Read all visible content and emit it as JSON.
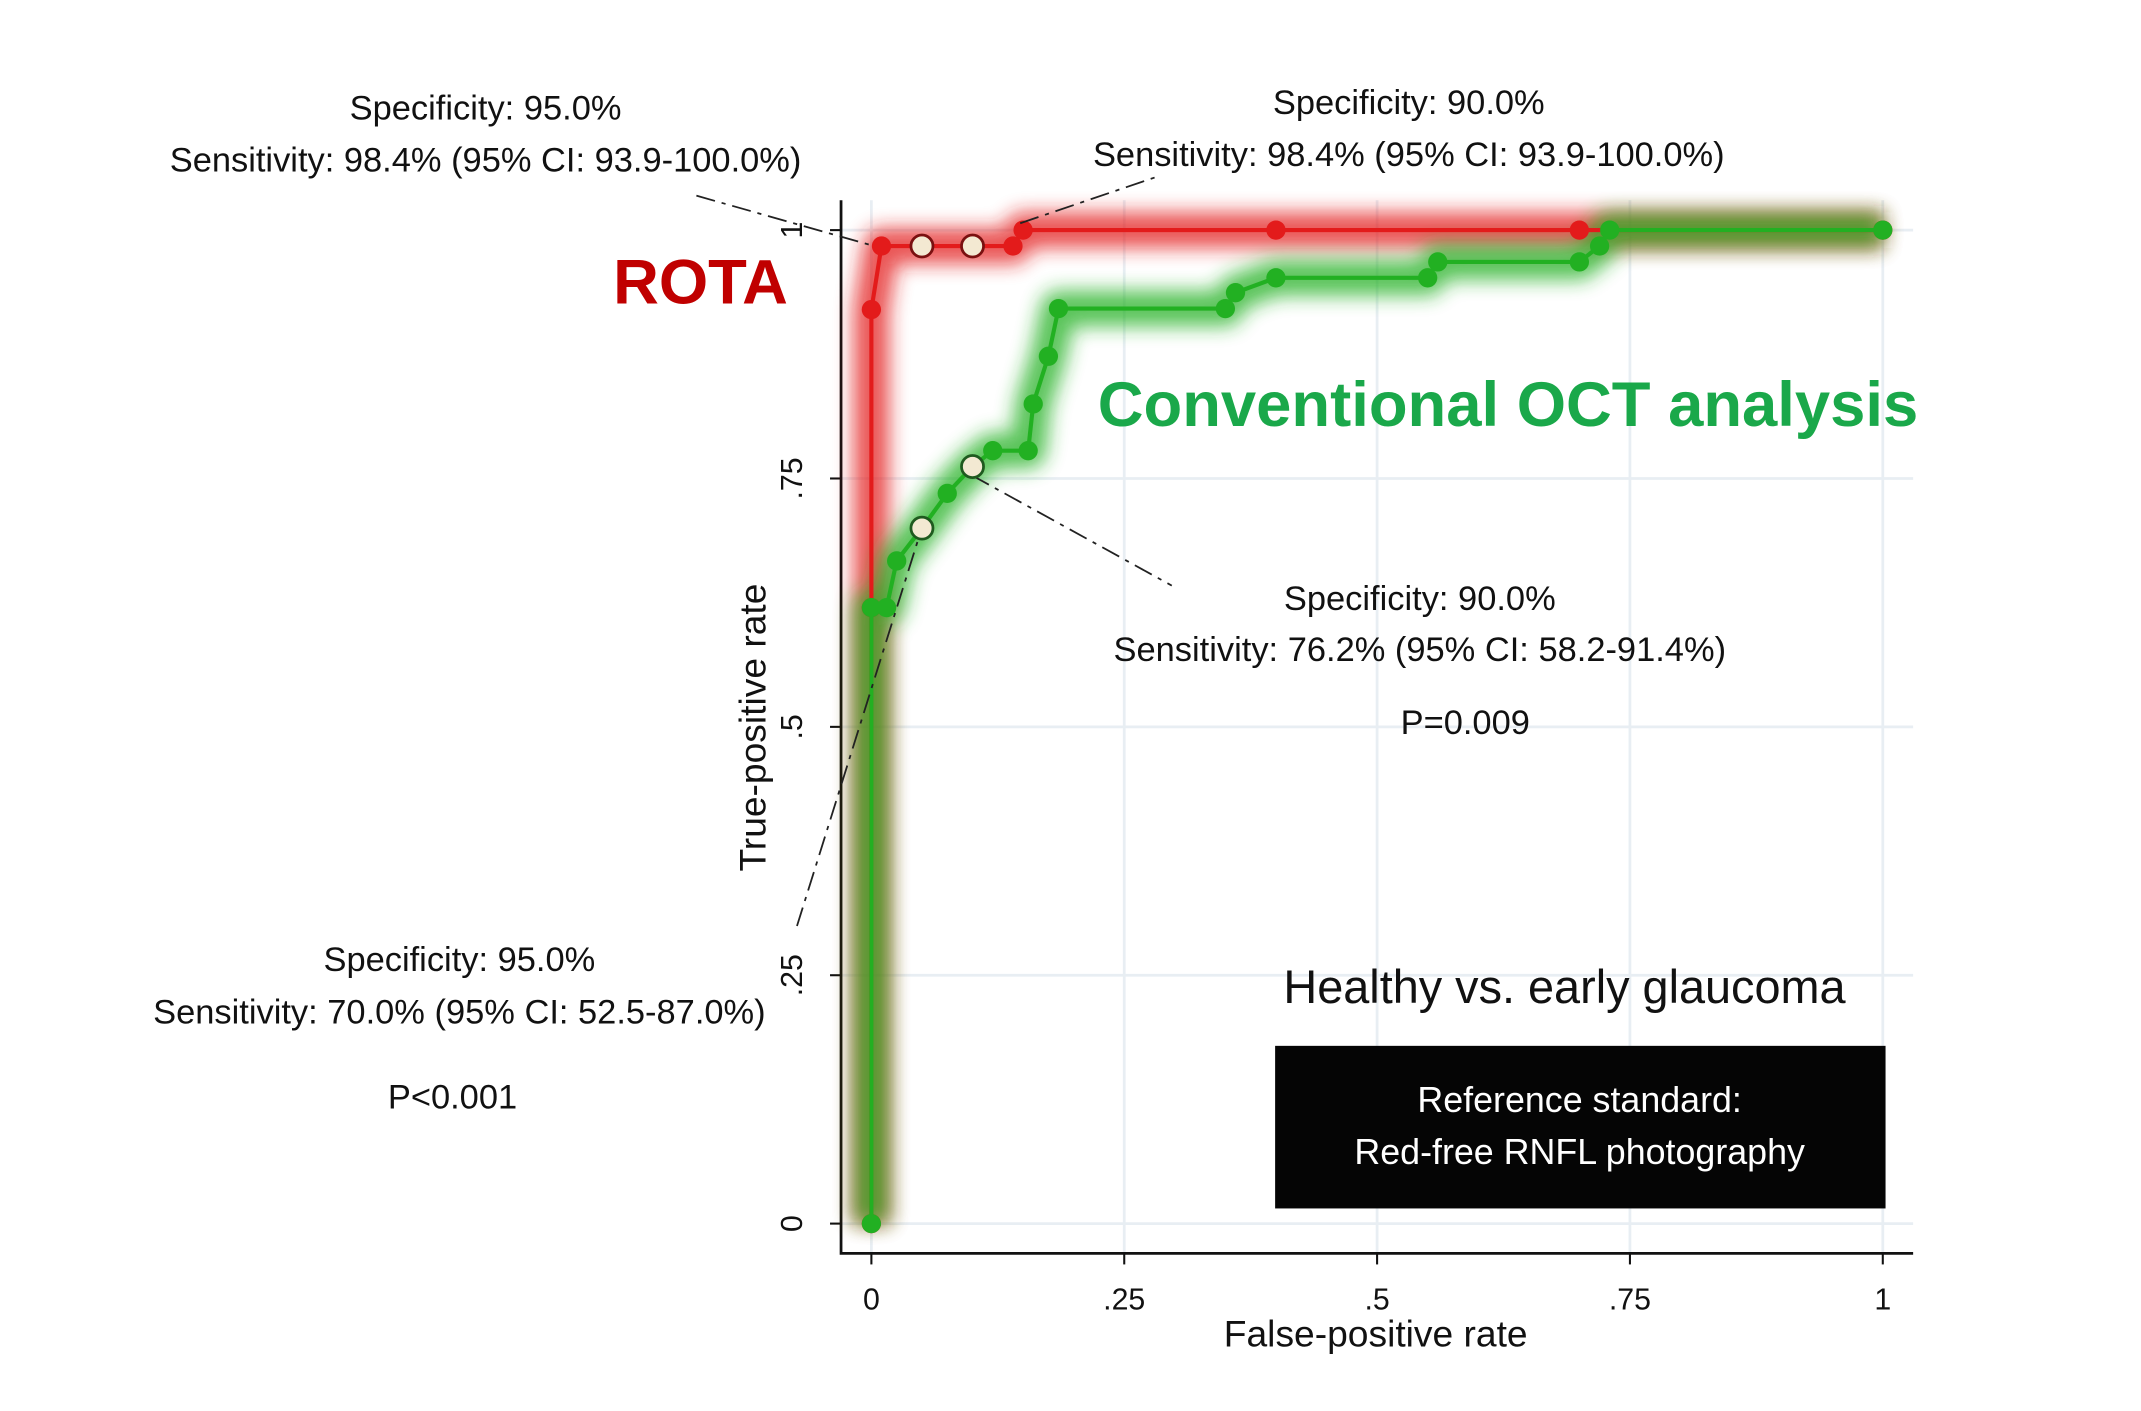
{
  "chart_data": {
    "type": "line",
    "xlabel": "False-positive rate",
    "ylabel": "True-positive rate",
    "xlim": [
      -0.03,
      1.03
    ],
    "ylim": [
      -0.03,
      1.03
    ],
    "xticks": [
      0,
      {
        "value": 0.25,
        "label": ".25"
      },
      {
        "value": 0.5,
        "label": ".5"
      },
      {
        "value": 0.75,
        "label": ".75"
      },
      1
    ],
    "yticks": [
      0,
      {
        "value": 0.25,
        "label": ".25"
      },
      {
        "value": 0.5,
        "label": ".5"
      },
      {
        "value": 0.75,
        "label": ".75"
      },
      1
    ],
    "grid": true,
    "series": [
      {
        "name": "ROTA",
        "color": "#e31b1b",
        "label_color": "#c00000",
        "x": [
          0,
          0,
          0,
          0.01,
          0.05,
          0.1,
          0.14,
          0.15,
          0.4,
          0.7,
          1
        ],
        "values": [
          0,
          0.62,
          0.92,
          0.984,
          0.984,
          0.984,
          0.984,
          1,
          1,
          1,
          1
        ]
      },
      {
        "name": "Conventional OCT analysis",
        "color": "#22b022",
        "label_color": "#1aa84a",
        "x": [
          0,
          0,
          0.015,
          0.025,
          0.05,
          0.075,
          0.1,
          0.12,
          0.155,
          0.16,
          0.175,
          0.185,
          0.35,
          0.36,
          0.4,
          0.55,
          0.56,
          0.7,
          0.72,
          0.73,
          1
        ],
        "values": [
          0,
          0.62,
          0.62,
          0.667,
          0.7,
          0.735,
          0.762,
          0.778,
          0.778,
          0.825,
          0.873,
          0.921,
          0.921,
          0.937,
          0.952,
          0.952,
          0.968,
          0.968,
          0.984,
          1,
          1
        ]
      }
    ],
    "annotations": [
      {
        "lines": [
          "Specificity: 95.0%",
          "Sensitivity: 98.4% (95% CI: 93.9-100.0%)"
        ],
        "point": [
          0.05,
          0.984
        ],
        "series": 0
      },
      {
        "lines": [
          "Specificity: 90.0%",
          "Sensitivity: 98.4% (95% CI: 93.9-100.0%)"
        ],
        "point": [
          0.1,
          0.984
        ],
        "series": 0
      },
      {
        "lines": [
          "Specificity: 90.0%",
          "Sensitivity: 76.2% (95% CI: 58.2-91.4%)",
          "P=0.009"
        ],
        "point": [
          0.1,
          0.762
        ],
        "series": 1
      },
      {
        "lines": [
          "Specificity: 95.0%",
          "Sensitivity: 70.0% (95% CI: 52.5-87.0%)",
          "P<0.001"
        ],
        "point": [
          0.05,
          0.7
        ],
        "series": 1
      }
    ],
    "caption": "Healthy vs. early glaucoma",
    "box_lines": [
      "Reference standard:",
      "Red-free RNFL photography"
    ]
  }
}
